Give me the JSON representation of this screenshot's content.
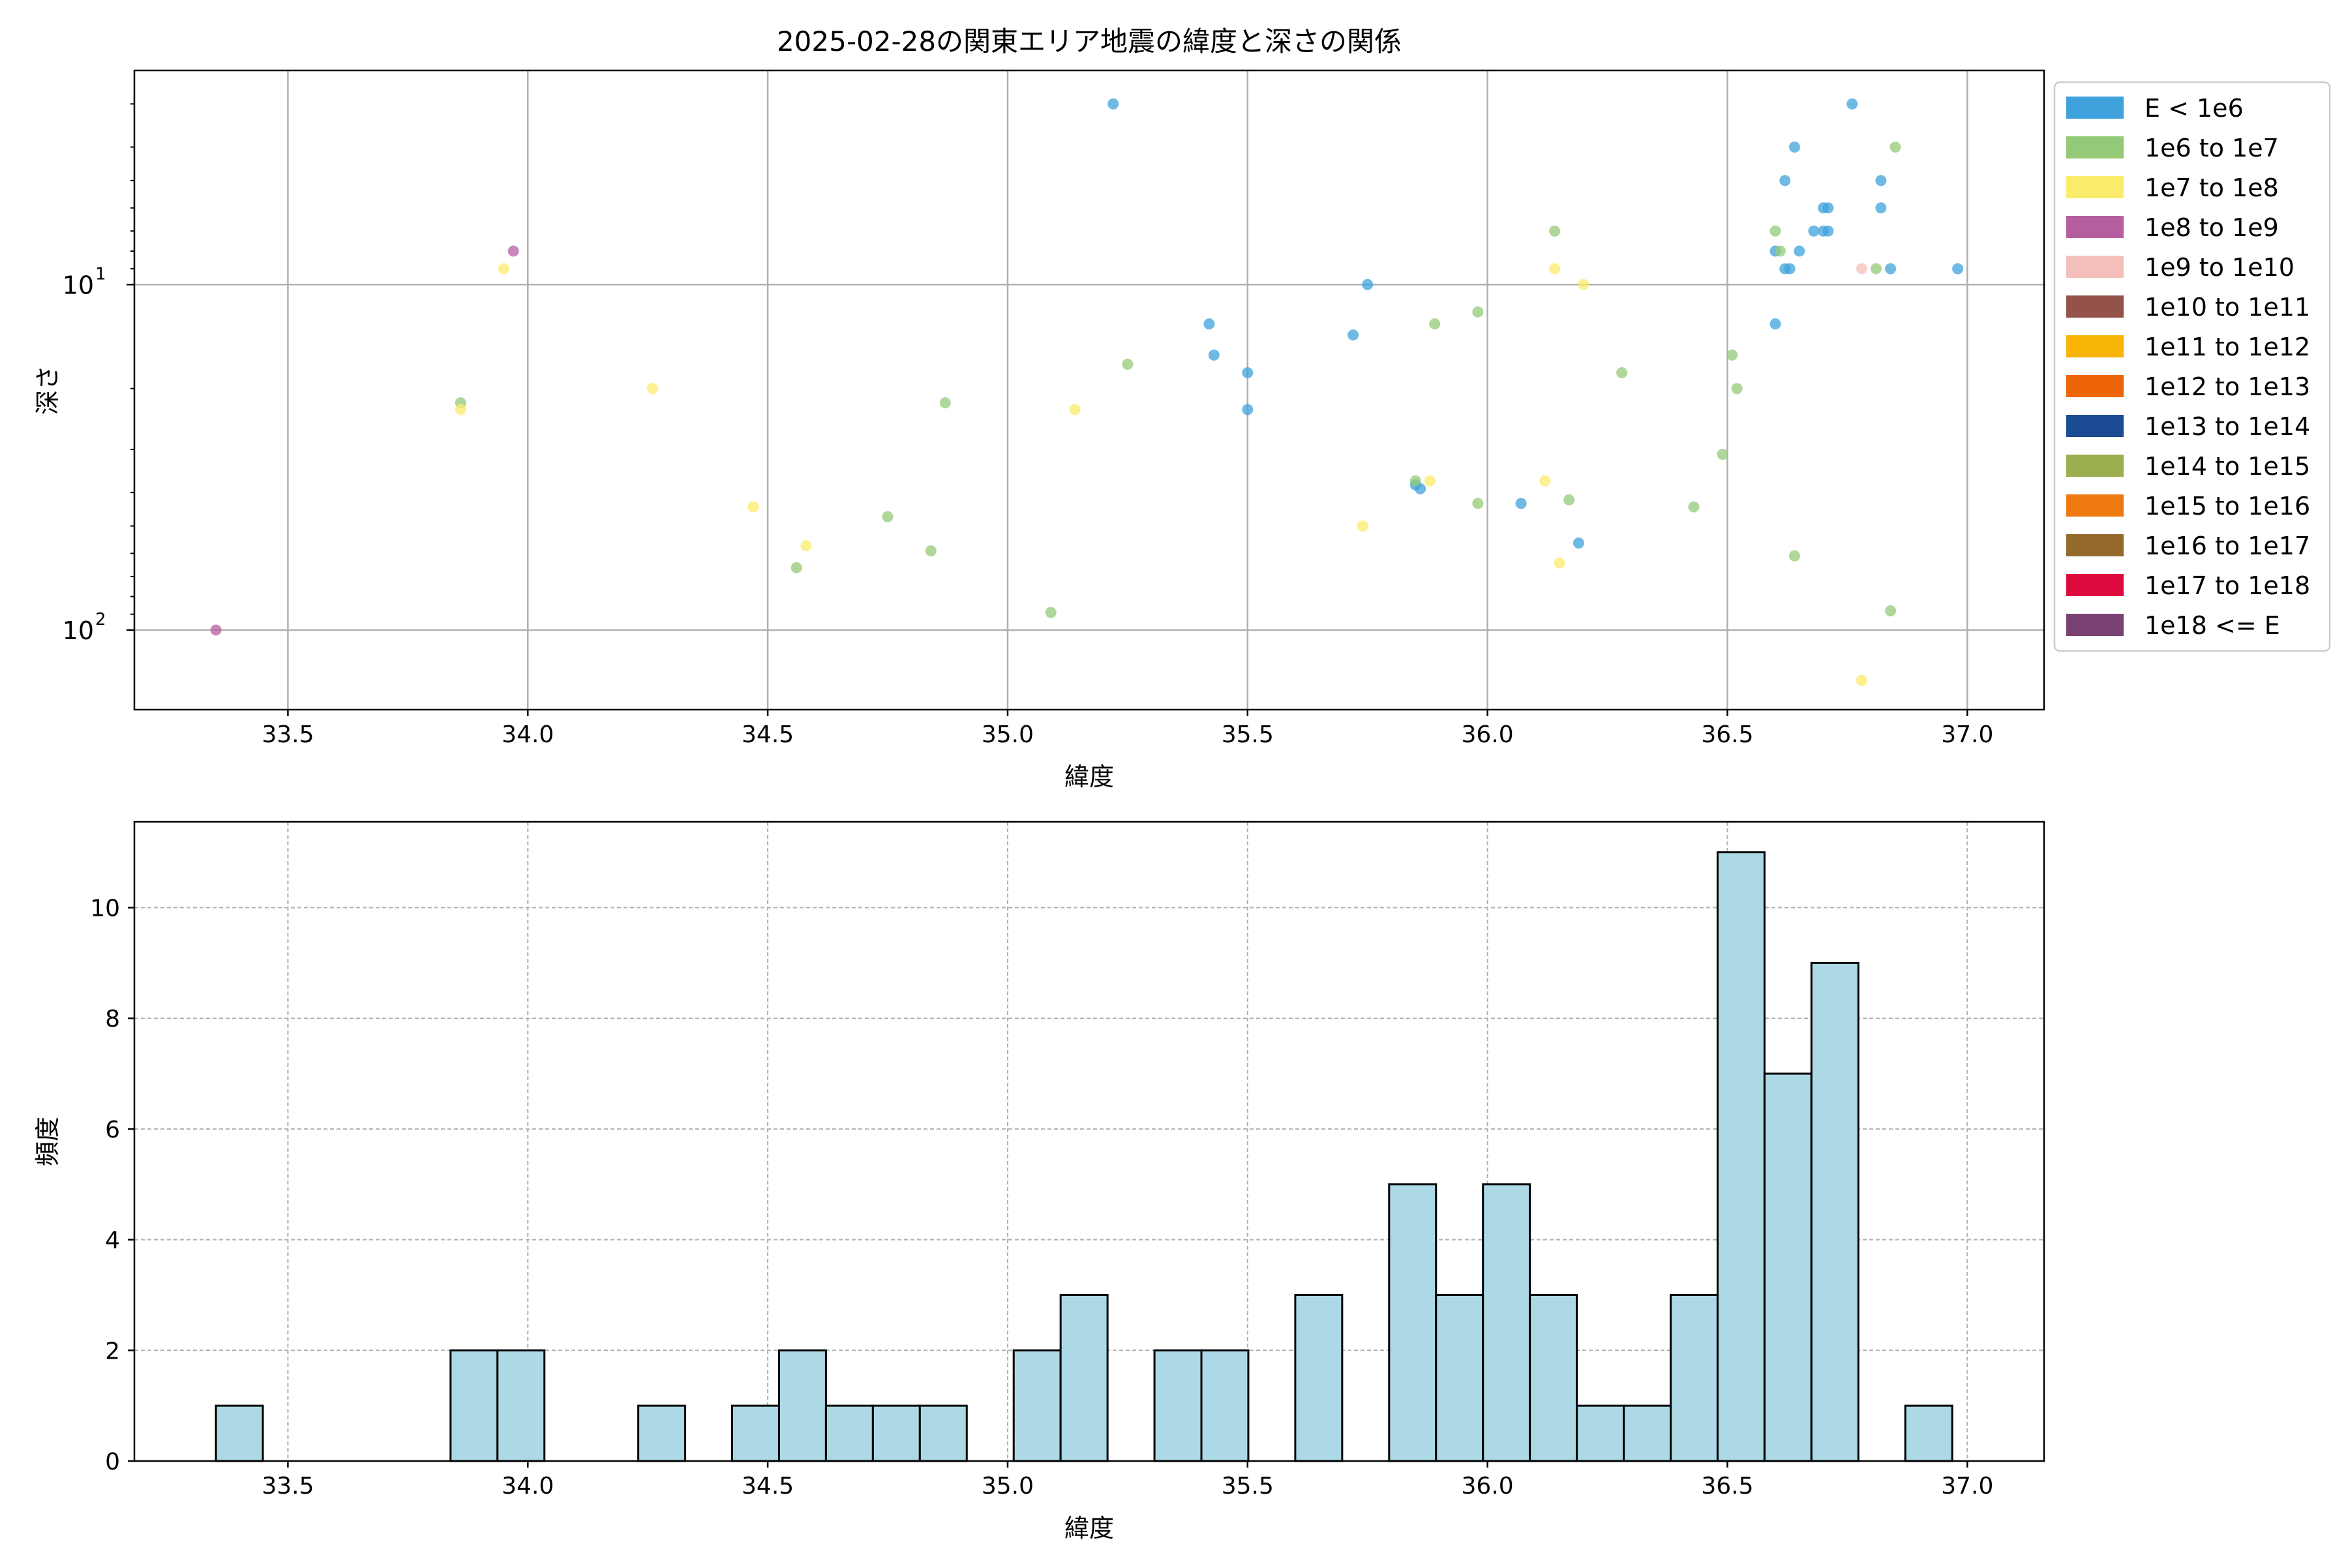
{
  "colors": {
    "E<1e6": "#3fa2dc",
    "1e6-1e7": "#93c977",
    "1e7-1e8": "#fbeb6a",
    "1e8-1e9": "#b55fa0",
    "1e9-1e10": "#f4bfbb",
    "1e10-1e11": "#93524a",
    "1e11-1e12": "#f8b407",
    "1e12-1e13": "#ee6507",
    "1e13-1e14": "#1b4b92",
    "1e14-1e15": "#9caf4f",
    "1e15-1e16": "#ee7a11",
    "1e16-1e17": "#946a2b",
    "1e17-1e18": "#dc0a3d",
    "1e18+": "#7a4272",
    "hist_bar": "#add8e6"
  },
  "chart_data": [
    {
      "type": "scatter",
      "title": "2025-02-28の関東エリア地震の緯度と深さの関係",
      "xlabel": "緯度",
      "ylabel": "深さ",
      "xlim": [
        33.18,
        37.16
      ],
      "ylim": [
        170,
        2.4
      ],
      "yscale": "log",
      "y_inverted": true,
      "xticks": [
        "33.5",
        "34.0",
        "34.5",
        "35.0",
        "35.5",
        "36.0",
        "36.5",
        "37.0"
      ],
      "yticks": [
        {
          "value": 10,
          "base": "10",
          "exp": "1"
        },
        {
          "value": 100,
          "base": "10",
          "exp": "2"
        }
      ],
      "grid": true,
      "legend_position": "outside-right",
      "legend": [
        {
          "label": "E < 1e6",
          "color_key": "E<1e6"
        },
        {
          "label": "1e6 to 1e7",
          "color_key": "1e6-1e7"
        },
        {
          "label": "1e7 to 1e8",
          "color_key": "1e7-1e8"
        },
        {
          "label": "1e8 to 1e9",
          "color_key": "1e8-1e9"
        },
        {
          "label": "1e9 to 1e10",
          "color_key": "1e9-1e10"
        },
        {
          "label": "1e10 to 1e11",
          "color_key": "1e10-1e11"
        },
        {
          "label": "1e11 to 1e12",
          "color_key": "1e11-1e12"
        },
        {
          "label": "1e12 to 1e13",
          "color_key": "1e12-1e13"
        },
        {
          "label": "1e13 to 1e14",
          "color_key": "1e13-1e14"
        },
        {
          "label": "1e14 to 1e15",
          "color_key": "1e14-1e15"
        },
        {
          "label": "1e15 to 1e16",
          "color_key": "1e15-1e16"
        },
        {
          "label": "1e16 to 1e17",
          "color_key": "1e16-1e17"
        },
        {
          "label": "1e17 to 1e18",
          "color_key": "1e17-1e18"
        },
        {
          "label": "1e18 <= E",
          "color_key": "1e18+"
        }
      ],
      "series": [
        {
          "name": "E < 1e6",
          "color_key": "E<1e6",
          "points": [
            [
              35.22,
              3
            ],
            [
              35.42,
              13
            ],
            [
              35.43,
              16
            ],
            [
              35.5,
              18
            ],
            [
              35.5,
              23
            ],
            [
              35.72,
              14
            ],
            [
              35.75,
              10
            ],
            [
              35.85,
              38
            ],
            [
              35.86,
              39
            ],
            [
              36.07,
              43
            ],
            [
              36.19,
              56
            ],
            [
              36.6,
              8
            ],
            [
              36.6,
              13
            ],
            [
              36.62,
              5
            ],
            [
              36.62,
              9
            ],
            [
              36.63,
              9
            ],
            [
              36.64,
              4
            ],
            [
              36.65,
              8
            ],
            [
              36.68,
              7
            ],
            [
              36.7,
              6
            ],
            [
              36.7,
              7
            ],
            [
              36.71,
              6
            ],
            [
              36.71,
              7
            ],
            [
              36.76,
              3
            ],
            [
              36.82,
              6
            ],
            [
              36.82,
              5
            ],
            [
              36.84,
              9
            ],
            [
              36.98,
              9
            ]
          ]
        },
        {
          "name": "1e6 to 1e7",
          "color_key": "1e6-1e7",
          "points": [
            [
              33.86,
              22
            ],
            [
              34.56,
              66
            ],
            [
              34.75,
              47
            ],
            [
              34.84,
              59
            ],
            [
              34.87,
              22
            ],
            [
              35.09,
              89
            ],
            [
              35.25,
              17
            ],
            [
              35.85,
              37
            ],
            [
              35.89,
              13
            ],
            [
              35.98,
              12
            ],
            [
              35.98,
              43
            ],
            [
              36.14,
              7
            ],
            [
              36.17,
              42
            ],
            [
              36.28,
              18
            ],
            [
              36.43,
              44
            ],
            [
              36.49,
              31
            ],
            [
              36.51,
              16
            ],
            [
              36.52,
              20
            ],
            [
              36.6,
              7
            ],
            [
              36.61,
              8
            ],
            [
              36.64,
              61
            ],
            [
              36.81,
              9
            ],
            [
              36.84,
              88
            ],
            [
              36.85,
              4
            ]
          ]
        },
        {
          "name": "1e7 to 1e8",
          "color_key": "1e7-1e8",
          "points": [
            [
              33.86,
              23
            ],
            [
              33.95,
              9
            ],
            [
              34.26,
              20
            ],
            [
              34.47,
              44
            ],
            [
              34.58,
              57
            ],
            [
              35.14,
              23
            ],
            [
              35.74,
              50
            ],
            [
              35.88,
              37
            ],
            [
              36.12,
              37
            ],
            [
              36.14,
              9
            ],
            [
              36.15,
              64
            ],
            [
              36.2,
              10
            ],
            [
              36.78,
              140
            ]
          ]
        },
        {
          "name": "1e8 to 1e9",
          "color_key": "1e8-1e9",
          "points": [
            [
              33.35,
              100
            ],
            [
              33.97,
              8
            ]
          ]
        },
        {
          "name": "1e9 to 1e10",
          "color_key": "1e9-1e10",
          "points": [
            [
              36.78,
              9
            ]
          ]
        }
      ]
    },
    {
      "type": "bar",
      "subtype": "histogram",
      "xlabel": "緯度",
      "ylabel": "頻度",
      "xlim": [
        33.18,
        37.16
      ],
      "ylim": [
        0,
        11.55
      ],
      "xticks": [
        "33.5",
        "34.0",
        "34.5",
        "35.0",
        "35.5",
        "36.0",
        "36.5",
        "37.0"
      ],
      "yticks": [
        "0",
        "2",
        "4",
        "6",
        "8",
        "10"
      ],
      "grid": true,
      "bin_start": 33.35,
      "bin_width": 0.0978,
      "values": [
        1,
        0,
        0,
        0,
        0,
        2,
        2,
        0,
        0,
        1,
        0,
        1,
        2,
        1,
        1,
        1,
        0,
        2,
        3,
        0,
        2,
        2,
        0,
        3,
        0,
        5,
        3,
        5,
        3,
        1,
        1,
        3,
        11,
        7,
        9,
        0,
        1
      ]
    }
  ]
}
